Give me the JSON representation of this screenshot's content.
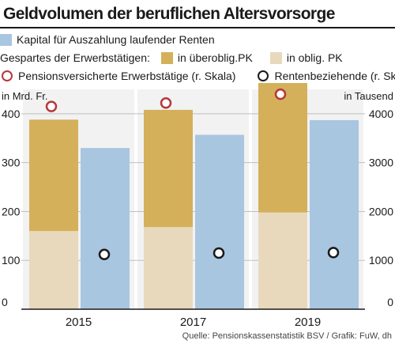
{
  "chart_data": {
    "type": "bar",
    "title": "Geldvolumen der beruflichen Altersvorsorge",
    "categories": [
      "2015",
      "2017",
      "2019"
    ],
    "left_axis": {
      "label": "in Mrd. Fr.",
      "ylim": [
        0,
        450
      ],
      "ticks": [
        "0",
        "100",
        "200",
        "300",
        "400"
      ],
      "tick_values": [
        0,
        100,
        200,
        300,
        400
      ]
    },
    "right_axis": {
      "label": "in Tausend",
      "ylim": [
        0,
        4500
      ],
      "ticks": [
        "0",
        "1000",
        "2000",
        "3000",
        "4000"
      ],
      "tick_values": [
        0,
        1000,
        2000,
        3000,
        4000
      ]
    },
    "legend": {
      "kapital": "Kapital für Auszahlung laufender Renten",
      "gespartes_prefix": "Gespartes der Erwerbstätigen:",
      "ueberoblig": "in überoblig.PK",
      "oblig": "in oblig. PK",
      "pensionsversicherte": "Pensionsversicherte Erwerbstätige (r. Skala)",
      "rentenbeziehende": "Rentenbeziehende (r. Skala)"
    },
    "series": [
      {
        "key": "oblig",
        "values": [
          160,
          168,
          198
        ]
      },
      {
        "key": "ueberoblig",
        "values": [
          228,
          240,
          265
        ]
      },
      {
        "key": "kapital",
        "values": [
          330,
          357,
          387
        ]
      },
      {
        "key": "pensionsversicherte",
        "axis": "right",
        "values": [
          4150,
          4220,
          4400
        ]
      },
      {
        "key": "rentenbeziehende",
        "axis": "right",
        "values": [
          1120,
          1150,
          1160
        ]
      }
    ],
    "grid": true,
    "source": "Quelle: Pensionskassenstatistik BSV / Grafik: FuW, dh"
  },
  "colors": {
    "kapital": "#a9c6e0",
    "ueberoblig": "#d4b05a",
    "oblig": "#e8d9bd",
    "pensionsversicherte": "#b5383a",
    "rentenbeziehende": "#1a1a1a",
    "grid": "#bfbfbf",
    "panel_bg": "#f2f2f2"
  }
}
